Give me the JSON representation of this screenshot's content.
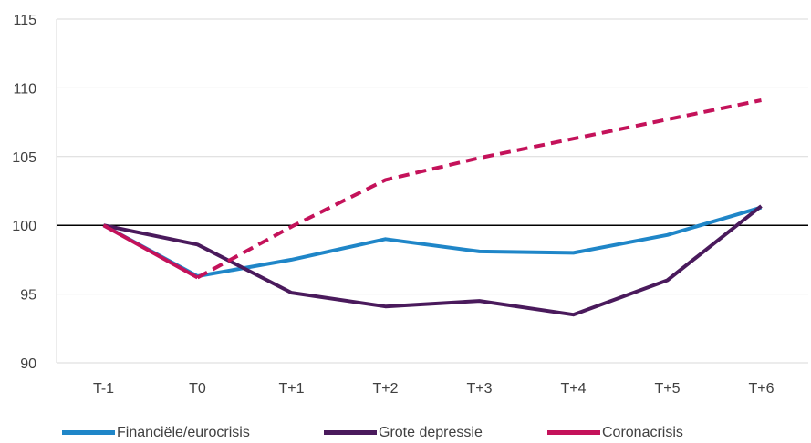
{
  "chart_data": {
    "type": "line",
    "title": "",
    "xlabel": "",
    "ylabel": "",
    "categories": [
      "T-1",
      "T0",
      "T+1",
      "T+2",
      "T+3",
      "T+4",
      "T+5",
      "T+6"
    ],
    "ylim": [
      90,
      115
    ],
    "yticks": [
      "90",
      "95",
      "100",
      "105",
      "110",
      "115"
    ],
    "grid": true,
    "reference_line": 100,
    "legend_position": "bottom",
    "series": [
      {
        "name": "Financiële/eurocrisis",
        "color": "#1f86c8",
        "style": "solid",
        "values": [
          100,
          96.3,
          97.5,
          99.0,
          98.1,
          98.0,
          99.3,
          101.3
        ]
      },
      {
        "name": "Grote depressie",
        "color": "#4a1a5c",
        "style": "solid",
        "values": [
          100,
          98.6,
          95.1,
          94.1,
          94.5,
          93.5,
          96.0,
          101.4
        ]
      },
      {
        "name": "Coronacrisis",
        "color": "#c4125a",
        "style": "solid",
        "values": [
          100,
          96.2,
          null,
          null,
          null,
          null,
          null,
          null
        ]
      },
      {
        "name": "",
        "color": "#c4125a",
        "style": "dashed",
        "values": [
          null,
          96.2,
          99.9,
          103.3,
          104.9,
          106.3,
          107.7,
          109.1
        ]
      }
    ]
  }
}
